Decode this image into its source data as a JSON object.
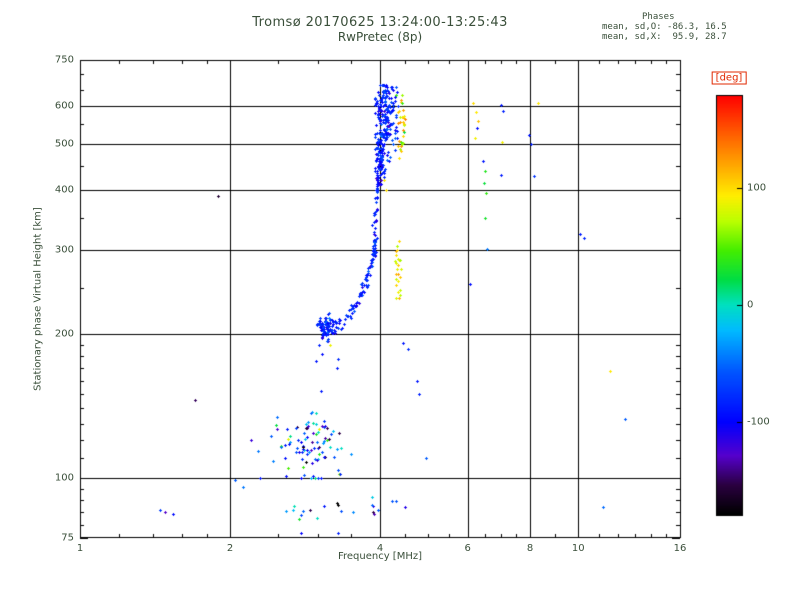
{
  "chart_data": {
    "type": "scatter",
    "title": "Tromsø 20170625 13:24:00-13:25:43",
    "subtitle": "RwPretec (8p)",
    "xlabel": "Frequency [MHz]",
    "ylabel": "Stationary phase Virtual Height [km]",
    "stats": {
      "header": "Phases",
      "line_o": "mean, sd,O: -86.3, 16.5",
      "line_x": "mean, sd,X:  95.9, 28.7"
    },
    "xlim": [
      1,
      16
    ],
    "ylim": [
      75,
      750
    ],
    "x_scale": "log",
    "y_scale": "log",
    "grid": true,
    "x_ticks": [
      1,
      2,
      4,
      6,
      8,
      10,
      16
    ],
    "y_ticks": [
      75,
      100,
      200,
      300,
      400,
      500,
      600,
      750
    ],
    "x_gridlines": [
      2,
      4,
      6,
      8,
      10
    ],
    "y_gridlines": [
      100,
      200,
      300,
      400,
      500,
      600
    ],
    "x_minor": [
      1.2,
      1.4,
      1.6,
      1.8,
      2.5,
      3,
      3.5,
      4.5,
      5,
      5.5,
      6.5,
      7,
      7.5,
      9,
      11,
      12,
      13,
      14,
      15
    ],
    "y_minor": [
      80,
      85,
      90,
      95,
      110,
      120,
      130,
      140,
      150,
      160,
      170,
      180,
      190,
      250,
      350,
      450,
      550,
      650,
      700
    ],
    "colorbar": {
      "label": "[deg]",
      "ticks": [
        100,
        0,
        -100
      ],
      "range": [
        -180,
        180
      ],
      "position": "right",
      "stops": [
        [
          0.0,
          "#000000"
        ],
        [
          0.07,
          "#2a0040"
        ],
        [
          0.14,
          "#5500cc"
        ],
        [
          0.22,
          "#0000ff"
        ],
        [
          0.34,
          "#0055ff"
        ],
        [
          0.44,
          "#00bbff"
        ],
        [
          0.5,
          "#00e0c0"
        ],
        [
          0.56,
          "#00dd44"
        ],
        [
          0.63,
          "#44ee00"
        ],
        [
          0.7,
          "#bbff00"
        ],
        [
          0.76,
          "#ffee00"
        ],
        [
          0.83,
          "#ffaa00"
        ],
        [
          0.9,
          "#ff6600"
        ],
        [
          1.0,
          "#ff0000"
        ]
      ]
    },
    "clusters": [
      {
        "name": "f-region-core",
        "count": 170,
        "dist": "gauss",
        "f_mean": 4.05,
        "f_sd": 0.07,
        "f_min": 3.9,
        "f_max": 4.32,
        "h_mean": 565,
        "h_sd": 60,
        "h_min": 462,
        "h_max": 665,
        "phase_mean": -86,
        "phase_sd": 18
      },
      {
        "name": "f-region-lower",
        "count": 70,
        "dist": "gauss",
        "f_mean": 4.0,
        "f_sd": 0.045,
        "f_min": 3.9,
        "f_max": 4.15,
        "h_mean": 455,
        "h_sd": 28,
        "h_min": 412,
        "h_max": 505,
        "phase_mean": -86,
        "phase_sd": 16
      },
      {
        "name": "f-region-right",
        "count": 40,
        "dist": "gauss",
        "f_mean": 4.24,
        "f_sd": 0.05,
        "f_min": 4.12,
        "f_max": 4.36,
        "h_mean": 575,
        "h_sd": 55,
        "h_min": 450,
        "h_max": 660,
        "phase_mean": -88,
        "phase_sd": 20
      },
      {
        "name": "x-mode-upper",
        "count": 30,
        "dist": "gauss",
        "f_mean": 4.43,
        "f_sd": 0.05,
        "f_min": 4.3,
        "f_max": 4.58,
        "h_mean": 550,
        "h_sd": 55,
        "h_min": 455,
        "h_max": 635,
        "phase_mean": 96,
        "phase_sd": 25
      },
      {
        "name": "x-mode-mid",
        "count": 26,
        "dist": "gauss",
        "f_mean": 4.34,
        "f_sd": 0.035,
        "f_min": 4.24,
        "f_max": 4.46,
        "h_mean": 272,
        "h_sd": 24,
        "h_min": 232,
        "h_max": 318,
        "phase_mean": 96,
        "phase_sd": 22
      },
      {
        "name": "arc-start-blob",
        "count": 50,
        "dist": "gauss",
        "f_mean": 3.13,
        "f_sd": 0.06,
        "f_min": 2.98,
        "f_max": 3.3,
        "h_mean": 207,
        "h_sd": 6,
        "h_min": 194,
        "h_max": 222,
        "phase_mean": -86,
        "phase_sd": 20
      },
      {
        "name": "e-region-blob",
        "count": 95,
        "dist": "gauss",
        "f_mean": 2.95,
        "f_sd": 0.24,
        "f_min": 2.42,
        "f_max": 3.55,
        "h_mean": 117,
        "h_sd": 9,
        "h_min": 100,
        "h_max": 140,
        "phase_mean": -75,
        "phase_sd": 55
      },
      {
        "name": "bottom-echoes",
        "count": 22,
        "dist": "uniform",
        "f_mean": 3.5,
        "f_sd": 0,
        "f_min": 2.55,
        "f_max": 4.55,
        "h_mean": 86.5,
        "h_sd": 2.2,
        "h_min": 82,
        "h_max": 92,
        "phase_mean": -75,
        "phase_sd": 50
      }
    ],
    "traces": [
      {
        "name": "f-arc",
        "count": 110,
        "f_jitter": 0.018,
        "h_rel_jitter": 0.018,
        "phase_mean": -86,
        "phase_sd": 15,
        "anchors": [
          [
            3.02,
            212
          ],
          [
            3.08,
            206
          ],
          [
            3.15,
            205
          ],
          [
            3.22,
            207
          ],
          [
            3.3,
            210
          ],
          [
            3.38,
            214
          ],
          [
            3.46,
            220
          ],
          [
            3.54,
            227
          ],
          [
            3.62,
            236
          ],
          [
            3.7,
            247
          ],
          [
            3.76,
            258
          ],
          [
            3.82,
            272
          ],
          [
            3.86,
            285
          ],
          [
            3.89,
            298
          ]
        ]
      },
      {
        "name": "f-rise",
        "count": 60,
        "f_jitter": 0.014,
        "h_rel_jitter": 0.012,
        "phase_mean": -86,
        "phase_sd": 13,
        "anchors": [
          [
            3.89,
            300
          ],
          [
            3.9,
            318
          ],
          [
            3.91,
            340
          ],
          [
            3.925,
            362
          ],
          [
            3.94,
            388
          ],
          [
            3.95,
            408
          ],
          [
            3.96,
            425
          ]
        ]
      }
    ],
    "sporadic": [
      [
        1.45,
        86,
        -70
      ],
      [
        1.48,
        85,
        -130
      ],
      [
        1.54,
        84,
        -95
      ],
      [
        1.7,
        146,
        -150
      ],
      [
        1.89,
        390,
        -160
      ],
      [
        2.05,
        99,
        -55
      ],
      [
        2.12,
        96,
        -45
      ],
      [
        2.3,
        100,
        -90
      ],
      [
        2.2,
        120,
        -120
      ],
      [
        2.28,
        114,
        -45
      ],
      [
        2.62,
        121,
        85
      ],
      [
        3.02,
        127,
        90
      ],
      [
        3.05,
        152,
        -88
      ],
      [
        3.17,
        190,
        88
      ],
      [
        2.98,
        176,
        -90
      ],
      [
        3.02,
        190,
        -85
      ],
      [
        3.06,
        182,
        -95
      ],
      [
        3.28,
        170,
        -88
      ],
      [
        3.3,
        178,
        -80
      ],
      [
        2.78,
        77,
        -100
      ],
      [
        3.3,
        77,
        -85
      ],
      [
        4.08,
        420,
        95
      ],
      [
        4.12,
        400,
        100
      ],
      [
        4.45,
        192,
        -90
      ],
      [
        4.55,
        186,
        -80
      ],
      [
        4.75,
        160,
        -90
      ],
      [
        4.8,
        150,
        -85
      ],
      [
        4.95,
        110,
        -55
      ],
      [
        6.05,
        255,
        -95
      ],
      [
        6.15,
        610,
        100
      ],
      [
        6.22,
        585,
        95
      ],
      [
        6.3,
        560,
        110
      ],
      [
        6.25,
        540,
        -95
      ],
      [
        6.2,
        515,
        90
      ],
      [
        6.45,
        460,
        -90
      ],
      [
        6.5,
        440,
        35
      ],
      [
        6.48,
        415,
        25
      ],
      [
        6.52,
        395,
        40
      ],
      [
        6.5,
        350,
        30
      ],
      [
        6.55,
        302,
        -45
      ],
      [
        7.0,
        605,
        -90
      ],
      [
        7.05,
        588,
        -85
      ],
      [
        7.02,
        505,
        90
      ],
      [
        7.0,
        432,
        -88
      ],
      [
        7.95,
        522,
        -90
      ],
      [
        8.05,
        500,
        -85
      ],
      [
        8.15,
        428,
        -75
      ],
      [
        8.3,
        610,
        95
      ],
      [
        10.1,
        325,
        -88
      ],
      [
        10.25,
        318,
        -82
      ],
      [
        11.6,
        168,
        95
      ],
      [
        11.2,
        87,
        -50
      ],
      [
        12.4,
        133,
        -55
      ]
    ]
  }
}
